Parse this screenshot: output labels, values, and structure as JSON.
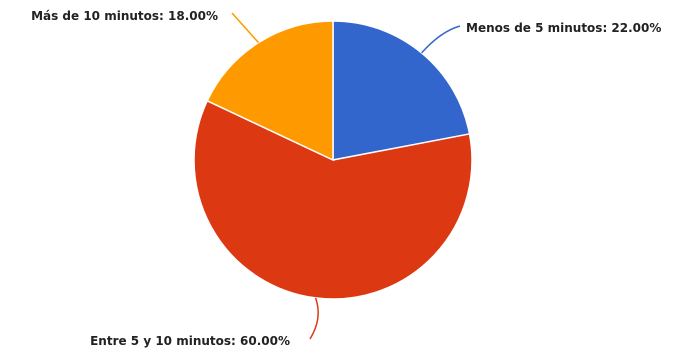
{
  "chart_data": {
    "type": "pie",
    "slices": [
      {
        "label": "Menos de 5 minutos",
        "value": 22.0,
        "display": "Menos de 5 minutos: 22.00%",
        "color": "#3366cc"
      },
      {
        "label": "Entre 5 y 10 minutos",
        "value": 60.0,
        "display": "Entre 5 y 10 minutos: 60.00%",
        "color": "#dc3912"
      },
      {
        "label": "Más de 10 minutos",
        "value": 18.0,
        "display": "Más de 10 minutos: 18.00%",
        "color": "#ff9900"
      }
    ],
    "start_angle": "12 o'clock",
    "direction": "clockwise"
  }
}
